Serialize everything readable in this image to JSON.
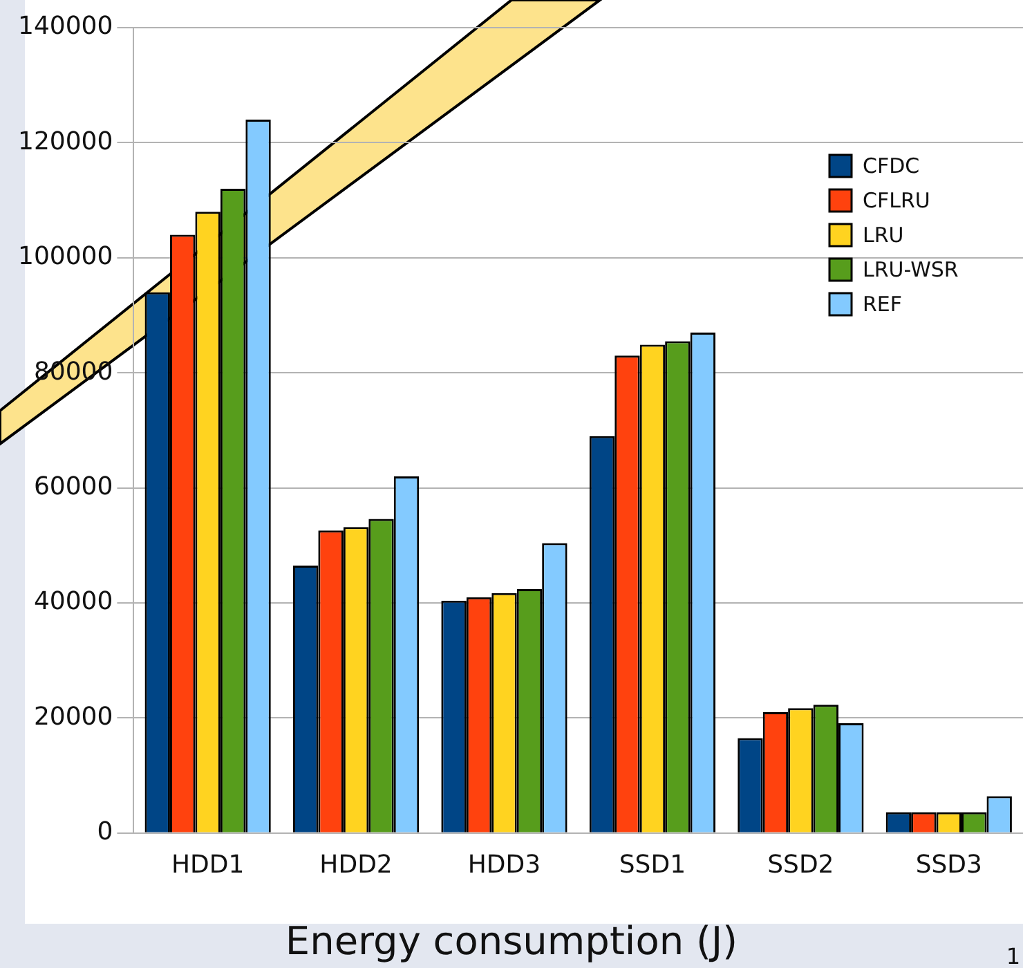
{
  "chart_data": {
    "type": "bar",
    "title": "Energy consumption (J)",
    "categories": [
      "HDD1",
      "HDD2",
      "HDD3",
      "SSD1",
      "SSD2",
      "SSD3"
    ],
    "series": [
      {
        "name": "CFDC",
        "color": "#004586",
        "values": [
          94000,
          46500,
          40400,
          69000,
          16500,
          3600
        ]
      },
      {
        "name": "CFLRU",
        "color": "#ff420e",
        "values": [
          104000,
          52600,
          41000,
          83000,
          21000,
          3600
        ]
      },
      {
        "name": "LRU",
        "color": "#ffd320",
        "values": [
          108000,
          53200,
          41700,
          84900,
          21700,
          3600
        ]
      },
      {
        "name": "LRU-WSR",
        "color": "#579d1c",
        "values": [
          112000,
          54600,
          42400,
          85500,
          22300,
          3600
        ]
      },
      {
        "name": "REF",
        "color": "#83caff",
        "values": [
          124000,
          62000,
          50400,
          87000,
          19100,
          6400
        ]
      }
    ],
    "ylim": [
      0,
      140000
    ],
    "yticks": [
      0,
      20000,
      40000,
      60000,
      80000,
      100000,
      120000,
      140000
    ],
    "grid": "y",
    "legend": "top right",
    "annotations": [
      "1"
    ]
  }
}
